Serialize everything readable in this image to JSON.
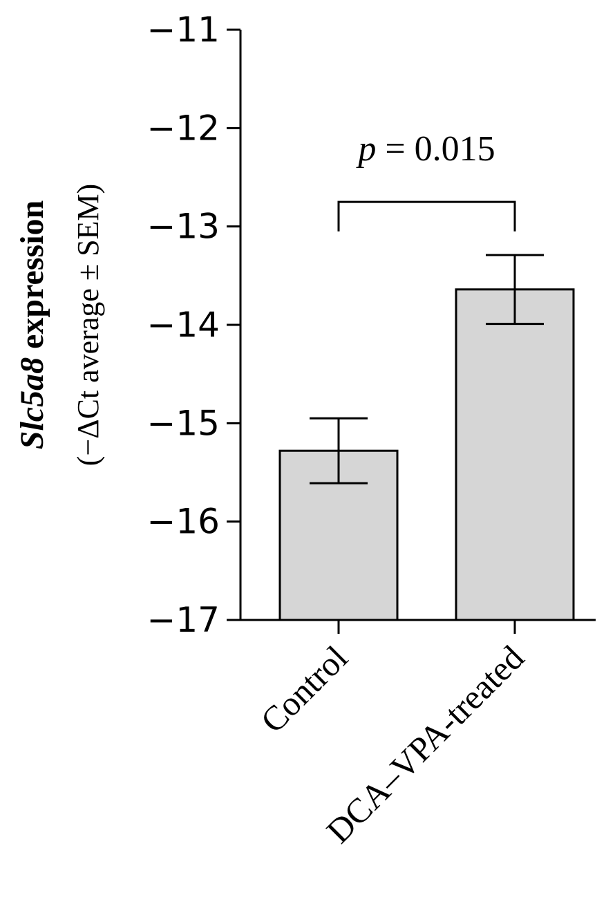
{
  "chart_data": {
    "type": "bar",
    "categories": [
      "Control",
      "DCA–VPA-treated"
    ],
    "values": [
      -15.28,
      -13.64
    ],
    "error": [
      0.33,
      0.35
    ],
    "ylim": [
      -17,
      -11
    ],
    "yticks": [
      -11,
      -12,
      -13,
      -14,
      -15,
      -16,
      -17
    ],
    "ytick_labels": [
      "−11",
      "−12",
      "−13",
      "−14",
      "−15",
      "−16",
      "−17"
    ],
    "ylabel_gene": "Slc5a8",
    "ylabel_rest": " expression",
    "ylabel_line2": "(−ΔCt average ±  SEM)",
    "bar_color": "#d6d6d6",
    "significance": {
      "p_symbol": "p",
      "p_rest": " = 0.015",
      "between": [
        0,
        1
      ]
    }
  }
}
